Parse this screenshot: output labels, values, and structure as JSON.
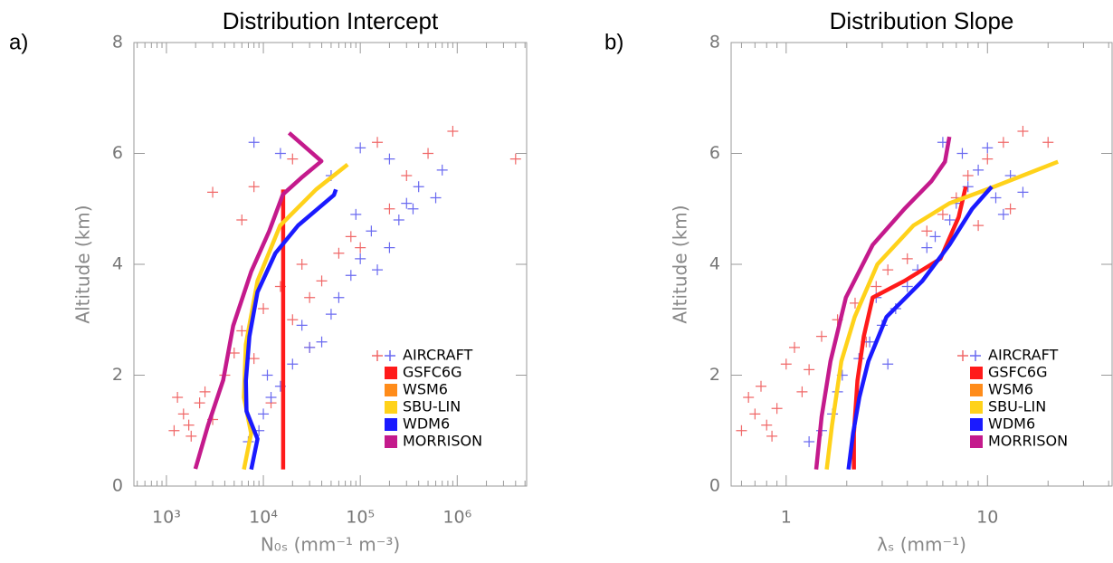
{
  "chart_data": [
    {
      "type": "line",
      "panel_label": "a)",
      "title": "Distribution Intercept",
      "xlabel": "N₀ₛ (mm⁻¹ m⁻³)",
      "ylabel": "Altitude (km)",
      "xlog": true,
      "xlim": [
        462,
        5200000
      ],
      "xticks": [
        {
          "value": 1000,
          "label": "10³"
        },
        {
          "value": 10000,
          "label": "10⁴"
        },
        {
          "value": 100000,
          "label": "10⁵"
        },
        {
          "value": 1000000,
          "label": "10⁶"
        }
      ],
      "ylim": [
        0,
        8
      ],
      "yticks": [
        0,
        2,
        4,
        6,
        8
      ],
      "aircraft": {
        "name": "AIRCRAFT",
        "groups": [
          {
            "color": "#f06868",
            "x": [
              1200,
              1500,
              1800,
              2500,
              1300,
              3000,
              2200,
              1700,
              4000,
              5000,
              6000,
              8000,
              10000,
              15000,
              20000,
              30000,
              25000,
              40000,
              60000,
              80000,
              100000,
              200000,
              300000,
              500000,
              900000,
              150000,
              4000000,
              6000,
              8000,
              3000,
              20000,
              30000,
              12000
            ],
            "values": [
              1.0,
              1.3,
              0.9,
              1.7,
              1.6,
              1.2,
              1.5,
              1.1,
              2.0,
              2.4,
              2.8,
              2.3,
              3.2,
              3.6,
              3.0,
              3.4,
              4.0,
              3.7,
              4.2,
              4.5,
              4.3,
              5.0,
              5.6,
              6.0,
              6.4,
              6.2,
              5.9,
              4.8,
              5.4,
              5.3,
              5.9,
              2.5,
              1.5
            ]
          },
          {
            "color": "#6a6af0",
            "x": [
              7000,
              9000,
              10000,
              12000,
              11000,
              15000,
              20000,
              30000,
              25000,
              40000,
              50000,
              60000,
              80000,
              100000,
              150000,
              200000,
              130000,
              250000,
              300000,
              400000,
              600000,
              700000,
              200000,
              100000,
              8000,
              15000,
              50000,
              350000,
              90000
            ],
            "values": [
              0.8,
              1.0,
              1.3,
              1.6,
              2.0,
              1.8,
              2.2,
              2.5,
              2.9,
              2.6,
              3.1,
              3.4,
              3.8,
              4.1,
              3.9,
              4.3,
              4.6,
              4.8,
              5.1,
              5.4,
              5.2,
              5.7,
              5.9,
              6.1,
              6.2,
              6.0,
              5.6,
              5.0,
              4.9
            ]
          }
        ]
      },
      "series": [
        {
          "name": "GSFC6G",
          "color": "#ff1a1a",
          "x": [
            16000,
            16000
          ],
          "values": [
            0.3,
            5.35
          ]
        },
        {
          "name": "WSM6",
          "color": "#ff8c1a",
          "x": [],
          "values": []
        },
        {
          "name": "SBU-LIN",
          "color": "#ffd21a",
          "x": [
            6300,
            7480,
            6300,
            6590,
            8700,
            14900,
            35000,
            74000
          ],
          "values": [
            0.3,
            0.95,
            1.6,
            2.55,
            3.7,
            4.7,
            5.35,
            5.8
          ]
        },
        {
          "name": "WDM6",
          "color": "#1a1aff",
          "x": [
            7500,
            8700,
            6700,
            6600,
            7180,
            8700,
            13300,
            22800,
            53500,
            56000
          ],
          "values": [
            0.3,
            0.85,
            1.35,
            1.9,
            2.7,
            3.5,
            4.2,
            4.7,
            5.25,
            5.35
          ]
        },
        {
          "name": "MORRISON",
          "color": "#c41a8c",
          "x": [
            1990,
            2680,
            3850,
            4880,
            7500,
            11500,
            15900,
            25400,
            39700,
            18400
          ],
          "values": [
            0.31,
            1.09,
            1.91,
            2.89,
            3.87,
            4.6,
            5.26,
            5.58,
            5.86,
            6.37
          ]
        }
      ]
    },
    {
      "type": "line",
      "panel_label": "b)",
      "title": "Distribution Slope",
      "xlabel": "λₛ (mm⁻¹)",
      "ylabel": "Altitude (km)",
      "xlog": true,
      "xlim": [
        0.533,
        41.6
      ],
      "xticks": [
        1,
        10
      ],
      "ylim": [
        0,
        8
      ],
      "yticks": [
        0,
        2,
        4,
        6,
        8
      ],
      "aircraft": {
        "name": "AIRCRAFT",
        "groups": [
          {
            "color": "#f06868",
            "x": [
              0.6,
              0.7,
              0.8,
              0.65,
              0.75,
              0.9,
              1.0,
              1.1,
              1.3,
              1.5,
              1.8,
              2.2,
              2.8,
              3.2,
              4,
              5,
              6,
              7,
              8,
              10,
              12,
              15,
              20,
              13,
              9,
              0.85,
              1.2,
              2.5
            ],
            "values": [
              1.0,
              1.3,
              1.1,
              1.6,
              1.8,
              1.4,
              2.2,
              2.5,
              2.1,
              2.7,
              3.0,
              3.3,
              3.6,
              3.9,
              4.1,
              4.6,
              4.9,
              5.2,
              5.6,
              5.9,
              6.2,
              6.4,
              6.2,
              5.0,
              4.7,
              0.9,
              1.7,
              2.6
            ]
          },
          {
            "color": "#6a6af0",
            "x": [
              1.3,
              1.5,
              1.7,
              1.8,
              1.9,
              2.3,
              2.6,
              3,
              3.5,
              4,
              4.5,
              5,
              5.5,
              6.5,
              7,
              8,
              9,
              10,
              11,
              13,
              12,
              6,
              7.5,
              15,
              3.2,
              2.8
            ],
            "values": [
              0.8,
              1.0,
              1.3,
              1.7,
              2.0,
              2.3,
              2.6,
              2.9,
              3.2,
              3.6,
              3.9,
              4.3,
              4.5,
              4.8,
              5.1,
              5.4,
              5.7,
              6.1,
              5.2,
              5.6,
              4.9,
              6.2,
              6.0,
              5.3,
              2.2,
              3.4
            ]
          }
        ]
      },
      "series": [
        {
          "name": "GSFC6G",
          "color": "#ff1a1a",
          "x": [
            2.17,
            2.17,
            2.26,
            2.43,
            2.69,
            3.87,
            5.84,
            7.19,
            7.8
          ],
          "values": [
            0.3,
            0.95,
            1.9,
            2.7,
            3.4,
            3.7,
            4.1,
            4.85,
            5.4
          ]
        },
        {
          "name": "WSM6",
          "color": "#ff8c1a",
          "x": [],
          "values": []
        },
        {
          "name": "SBU-LIN",
          "color": "#ffd21a",
          "x": [
            1.59,
            1.69,
            1.88,
            2.19,
            2.84,
            4.29,
            6.47,
            10.8,
            22.4
          ],
          "values": [
            0.3,
            1.1,
            2.25,
            3.05,
            4.0,
            4.7,
            5.1,
            5.4,
            5.85
          ]
        },
        {
          "name": "WDM6",
          "color": "#1a1aff",
          "x": [
            2.04,
            2.15,
            2.31,
            2.56,
            3.15,
            4.75,
            6.47,
            8.39,
            10.5
          ],
          "values": [
            0.3,
            0.95,
            1.6,
            2.25,
            3.05,
            3.7,
            4.35,
            5.0,
            5.4
          ]
        },
        {
          "name": "MORRISON",
          "color": "#c41a8c",
          "x": [
            1.41,
            1.5,
            1.66,
            1.98,
            2.69,
            3.87,
            5.27,
            6.15,
            6.47
          ],
          "values": [
            0.3,
            1.25,
            2.25,
            3.4,
            4.35,
            5.0,
            5.5,
            5.85,
            6.3
          ]
        }
      ]
    }
  ]
}
